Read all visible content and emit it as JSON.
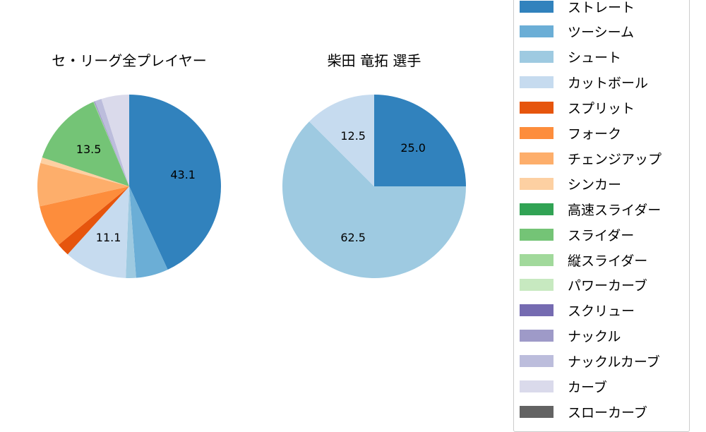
{
  "chart_data": [
    {
      "type": "pie",
      "title": "セ・リーグ全プレイヤー",
      "start_angle": 90,
      "direction": "clockwise",
      "slices": [
        {
          "label": "ストレート",
          "value": 43.1,
          "color": "#3182bd",
          "show_label": true
        },
        {
          "label": "ツーシーム",
          "value": 5.7,
          "color": "#6baed6",
          "show_label": false
        },
        {
          "label": "シュート",
          "value": 1.8,
          "color": "#9ecae1",
          "show_label": false
        },
        {
          "label": "カットボール",
          "value": 11.1,
          "color": "#c6dbef",
          "show_label": true
        },
        {
          "label": "スプリット",
          "value": 2.3,
          "color": "#e6550d",
          "show_label": false
        },
        {
          "label": "フォーク",
          "value": 7.5,
          "color": "#fd8d3c",
          "show_label": false
        },
        {
          "label": "チェンジアップ",
          "value": 7.6,
          "color": "#fdae6b",
          "show_label": false
        },
        {
          "label": "シンカー",
          "value": 1.0,
          "color": "#fdd0a2",
          "show_label": false
        },
        {
          "label": "高速スライダー",
          "value": 0.0,
          "color": "#31a354",
          "show_label": false
        },
        {
          "label": "スライダー",
          "value": 13.5,
          "color": "#74c476",
          "show_label": true
        },
        {
          "label": "縦スライダー",
          "value": 0.1,
          "color": "#a1d99b",
          "show_label": false
        },
        {
          "label": "パワーカーブ",
          "value": 0.0,
          "color": "#c7e9c0",
          "show_label": false
        },
        {
          "label": "スクリュー",
          "value": 0.0,
          "color": "#756bb1",
          "show_label": false
        },
        {
          "label": "ナックル",
          "value": 0.2,
          "color": "#9e9ac8",
          "show_label": false
        },
        {
          "label": "ナックルカーブ",
          "value": 1.2,
          "color": "#bcbddc",
          "show_label": false
        },
        {
          "label": "カーブ",
          "value": 4.9,
          "color": "#dadaeb",
          "show_label": false
        },
        {
          "label": "スローカーブ",
          "value": 0.0,
          "color": "#636363",
          "show_label": false
        }
      ]
    },
    {
      "type": "pie",
      "title": "柴田 竜拓  選手",
      "start_angle": 90,
      "direction": "clockwise",
      "slices": [
        {
          "label": "ストレート",
          "value": 25.0,
          "color": "#3182bd",
          "show_label": true
        },
        {
          "label": "シュート",
          "value": 62.5,
          "color": "#9ecae1",
          "show_label": true
        },
        {
          "label": "カットボール",
          "value": 12.5,
          "color": "#c6dbef",
          "show_label": true
        }
      ]
    }
  ],
  "titles": {
    "left": "セ・リーグ全プレイヤー",
    "right": "柴田 竜拓  選手"
  },
  "legend": {
    "items": [
      {
        "label": "ストレート",
        "color": "#3182bd"
      },
      {
        "label": "ツーシーム",
        "color": "#6baed6"
      },
      {
        "label": "シュート",
        "color": "#9ecae1"
      },
      {
        "label": "カットボール",
        "color": "#c6dbef"
      },
      {
        "label": "スプリット",
        "color": "#e6550d"
      },
      {
        "label": "フォーク",
        "color": "#fd8d3c"
      },
      {
        "label": "チェンジアップ",
        "color": "#fdae6b"
      },
      {
        "label": "シンカー",
        "color": "#fdd0a2"
      },
      {
        "label": "高速スライダー",
        "color": "#31a354"
      },
      {
        "label": "スライダー",
        "color": "#74c476"
      },
      {
        "label": "縦スライダー",
        "color": "#a1d99b"
      },
      {
        "label": "パワーカーブ",
        "color": "#c7e9c0"
      },
      {
        "label": "スクリュー",
        "color": "#756bb1"
      },
      {
        "label": "ナックル",
        "color": "#9e9ac8"
      },
      {
        "label": "ナックルカーブ",
        "color": "#bcbddc"
      },
      {
        "label": "カーブ",
        "color": "#dadaeb"
      },
      {
        "label": "スローカーブ",
        "color": "#636363"
      }
    ]
  }
}
